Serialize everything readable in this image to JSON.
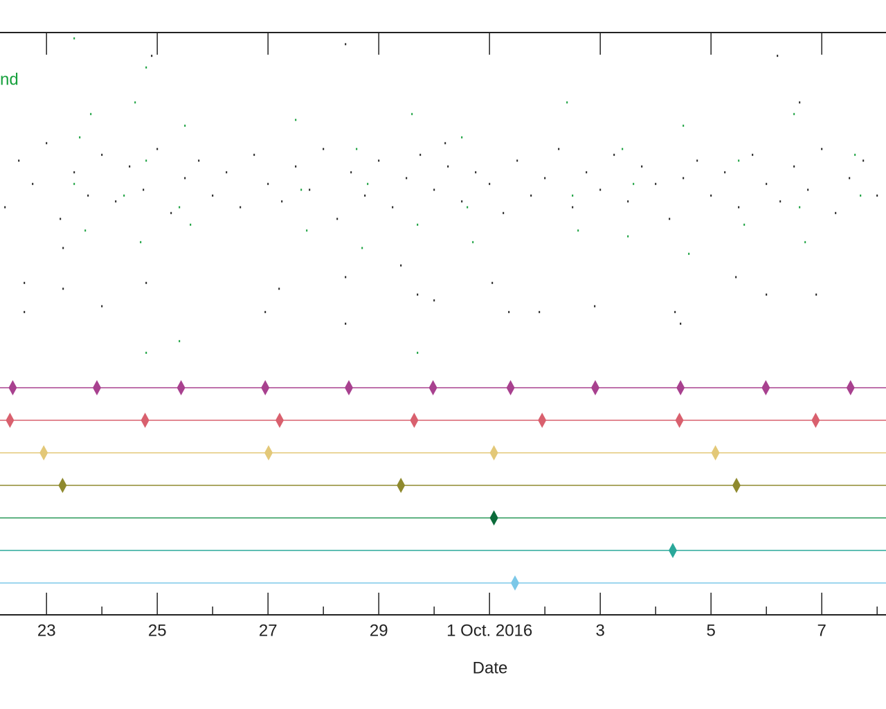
{
  "chart_data": {
    "type": "timeline",
    "x_label": "Date",
    "xlim": [
      22.16,
      38.16
    ],
    "ylim": [
      0,
      100
    ],
    "xticks": [
      23,
      25,
      27,
      29,
      {
        "value": 31,
        "label": "1 Oct. 2016"
      },
      {
        "value": 33,
        "label": "3"
      },
      {
        "value": 35,
        "label": "5"
      },
      {
        "value": 37,
        "label": "7"
      }
    ],
    "xminorticks": [
      24,
      26,
      28,
      30,
      32,
      34,
      36,
      38
    ],
    "series": [
      {
        "color": "#222222",
        "x": [
          22.25,
          22.5,
          22.75,
          23.0,
          23.25,
          23.5,
          23.75,
          24.0,
          24.25,
          24.5,
          24.75,
          25.0,
          25.25,
          25.5,
          25.75,
          26.0,
          26.25,
          26.5,
          26.75,
          27.0,
          27.25,
          27.5,
          27.75,
          28.0,
          28.25,
          28.5,
          28.75,
          29.0,
          29.25,
          29.5,
          29.75,
          30.0,
          30.25,
          30.5,
          30.75,
          31.0,
          31.25,
          31.5,
          31.75,
          32.0,
          32.25,
          32.5,
          32.75,
          33.0,
          33.25,
          33.5,
          33.75,
          34.0,
          34.25,
          34.5,
          34.75,
          35.0,
          35.25,
          35.5,
          35.75,
          36.0,
          36.25,
          36.5,
          36.75,
          37.0,
          37.25,
          37.5,
          37.75,
          38.0,
          22.6,
          22.6,
          23.3,
          23.3,
          24.0,
          24.8,
          26.95,
          27.2,
          28.4,
          28.4,
          29.4,
          29.7,
          30.0,
          31.05,
          31.35,
          31.9,
          32.9,
          34.35,
          34.45,
          35.45,
          36.0,
          36.9,
          28.4,
          36.2,
          24.9,
          36.6,
          30.2
        ],
        "values": [
          70,
          78,
          74,
          81,
          68,
          76,
          72,
          79,
          71,
          77,
          73,
          80,
          69,
          75,
          78,
          72,
          76,
          70,
          79,
          74,
          71,
          77,
          73,
          80,
          68,
          76,
          72,
          78,
          70,
          75,
          79,
          73,
          77,
          71,
          76,
          74,
          69,
          78,
          72,
          75,
          80,
          70,
          76,
          73,
          79,
          71,
          77,
          74,
          68,
          75,
          78,
          72,
          76,
          70,
          79,
          74,
          71,
          77,
          73,
          80,
          69,
          75,
          78,
          72,
          57,
          52,
          63,
          56,
          53,
          57,
          52,
          56,
          58,
          50,
          60,
          55,
          54,
          57,
          52,
          52,
          53,
          52,
          50,
          58,
          55,
          55,
          98,
          96,
          96,
          88,
          81
        ]
      },
      {
        "name": "nd",
        "color": "#16a03c",
        "x": [
          23.5,
          23.6,
          23.7,
          23.8,
          24.4,
          24.6,
          24.7,
          24.8,
          25.4,
          25.5,
          25.6,
          27.5,
          27.6,
          27.7,
          28.6,
          28.7,
          28.8,
          29.6,
          29.7,
          30.5,
          30.6,
          30.7,
          32.4,
          32.5,
          32.6,
          33.4,
          33.5,
          33.6,
          34.5,
          34.6,
          35.5,
          35.6,
          36.5,
          36.6,
          36.7,
          37.6,
          37.7,
          24.8,
          25.4,
          29.7,
          23.5,
          24.8
        ],
        "values": [
          74,
          82,
          66,
          86,
          72,
          88,
          64,
          78,
          70,
          84,
          67,
          85,
          73,
          66,
          80,
          63,
          74,
          86,
          67,
          82,
          70,
          64,
          88,
          72,
          66,
          80,
          65,
          74,
          84,
          62,
          78,
          67,
          86,
          70,
          64,
          79,
          72,
          45,
          47,
          45,
          99,
          94
        ]
      }
    ],
    "events": [
      {
        "color": "#a8418f",
        "x": [
          22.39,
          23.91,
          25.43,
          26.95,
          28.46,
          29.98,
          31.38,
          32.91,
          34.45,
          35.99,
          37.52
        ]
      },
      {
        "color": "#d9606e",
        "x": [
          22.34,
          24.78,
          27.21,
          29.64,
          31.95,
          34.43,
          36.89
        ]
      },
      {
        "color": "#e3c878",
        "x": [
          22.95,
          27.01,
          31.08,
          35.08
        ]
      },
      {
        "color": "#8f8a2e",
        "x": [
          23.29,
          29.4,
          35.46
        ]
      },
      {
        "color": "#2b9a5a",
        "marker_color": "#0b6b3a",
        "x": [
          31.08
        ]
      },
      {
        "color": "#2aa89a",
        "x": [
          34.31
        ]
      },
      {
        "color": "#7cc8e8",
        "x": [
          31.46
        ]
      }
    ]
  }
}
